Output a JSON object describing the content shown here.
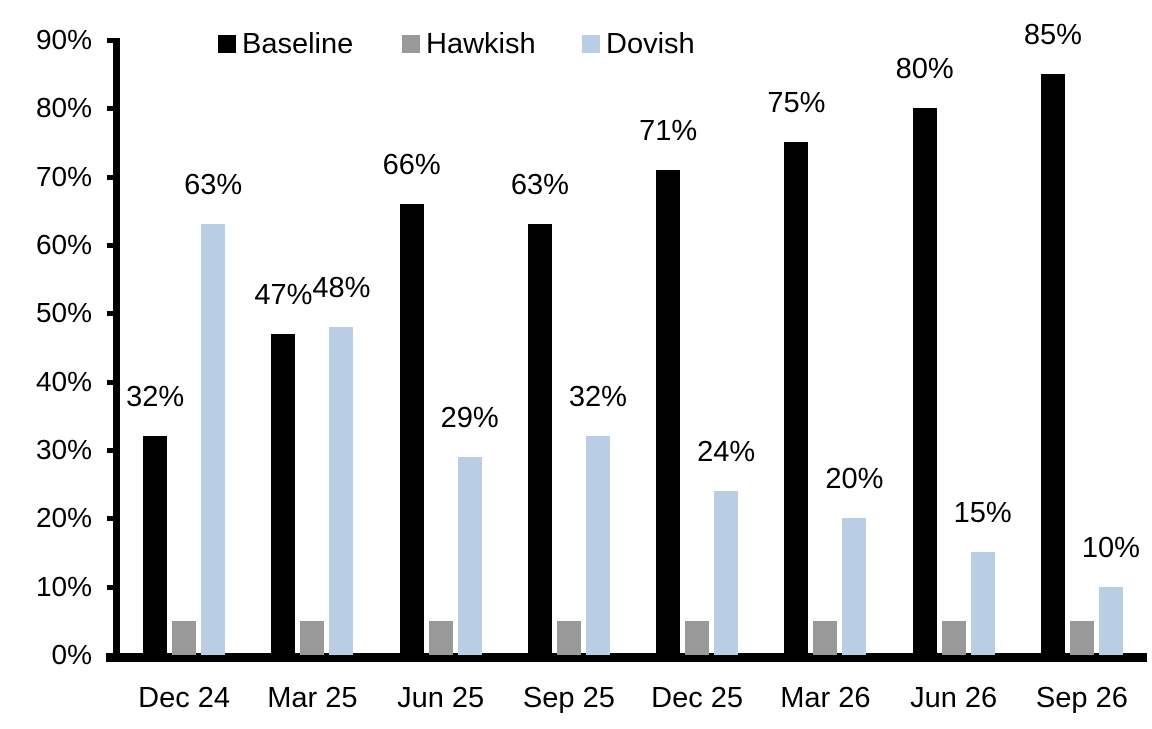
{
  "chart_data": {
    "type": "bar",
    "title": "",
    "xlabel": "",
    "ylabel": "",
    "categories": [
      "Dec 24",
      "Mar 25",
      "Jun 25",
      "Sep 25",
      "Dec 25",
      "Mar 26",
      "Jun 26",
      "Sep 26"
    ],
    "series": [
      {
        "name": "Baseline",
        "color": "#000000",
        "values": [
          32,
          47,
          66,
          63,
          71,
          75,
          80,
          85
        ],
        "data_labels": true
      },
      {
        "name": "Hawkish",
        "color": "#999999",
        "values": [
          5,
          5,
          5,
          5,
          5,
          5,
          5,
          5
        ],
        "data_labels": false
      },
      {
        "name": "Dovish",
        "color": "#B9CDE4",
        "values": [
          63,
          48,
          29,
          32,
          24,
          20,
          15,
          10
        ],
        "data_labels": true
      }
    ],
    "data_label_format": "{v}%",
    "ylim": [
      0,
      90
    ],
    "yticks": [
      0,
      10,
      20,
      30,
      40,
      50,
      60,
      70,
      80,
      90
    ],
    "ytick_labels": [
      "0%",
      "10%",
      "20%",
      "30%",
      "40%",
      "50%",
      "60%",
      "70%",
      "80%",
      "90%"
    ],
    "legend": {
      "position": "top",
      "entries": [
        "Baseline",
        "Hawkish",
        "Dovish"
      ]
    },
    "grid": false,
    "axis_color": "#000000",
    "background_color": "#FFFFFF"
  }
}
